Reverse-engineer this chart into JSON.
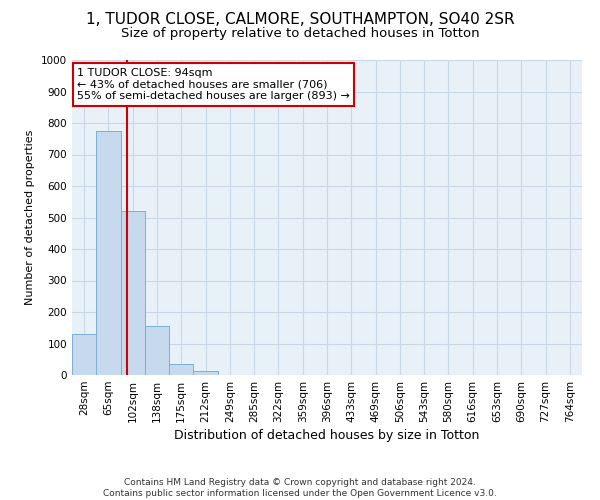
{
  "title": "1, TUDOR CLOSE, CALMORE, SOUTHAMPTON, SO40 2SR",
  "subtitle": "Size of property relative to detached houses in Totton",
  "xlabel": "Distribution of detached houses by size in Totton",
  "ylabel": "Number of detached properties",
  "bin_labels": [
    "28sqm",
    "65sqm",
    "102sqm",
    "138sqm",
    "175sqm",
    "212sqm",
    "249sqm",
    "285sqm",
    "322sqm",
    "359sqm",
    "396sqm",
    "433sqm",
    "469sqm",
    "506sqm",
    "543sqm",
    "580sqm",
    "616sqm",
    "653sqm",
    "690sqm",
    "727sqm",
    "764sqm"
  ],
  "bar_values": [
    130,
    775,
    520,
    155,
    35,
    12,
    0,
    0,
    0,
    0,
    0,
    0,
    0,
    0,
    0,
    0,
    0,
    0,
    0,
    0,
    0
  ],
  "bar_color": "#c6d9ed",
  "bar_edge_color": "#7aafd4",
  "property_line_color": "#cc0000",
  "annotation_text": "1 TUDOR CLOSE: 94sqm\n← 43% of detached houses are smaller (706)\n55% of semi-detached houses are larger (893) →",
  "annotation_box_color": "#cc0000",
  "ylim": [
    0,
    1000
  ],
  "yticks": [
    0,
    100,
    200,
    300,
    400,
    500,
    600,
    700,
    800,
    900,
    1000
  ],
  "footer_line1": "Contains HM Land Registry data © Crown copyright and database right 2024.",
  "footer_line2": "Contains public sector information licensed under the Open Government Licence v3.0.",
  "bg_color": "#ffffff",
  "plot_bg_color": "#e8f0f8",
  "grid_color": "#c8d8e8",
  "title_fontsize": 11,
  "subtitle_fontsize": 9.5,
  "ylabel_fontsize": 8,
  "xlabel_fontsize": 9,
  "tick_fontsize": 7.5,
  "footer_fontsize": 6.5,
  "ann_fontsize": 8
}
